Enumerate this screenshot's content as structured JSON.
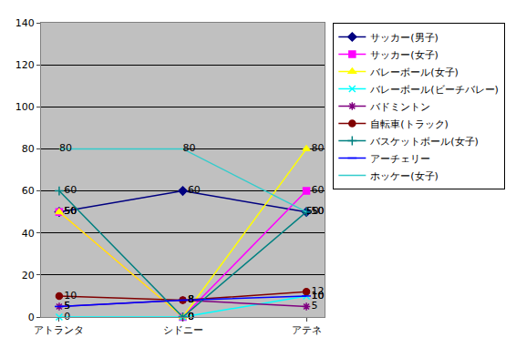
{
  "chart_data": {
    "type": "line",
    "categories": [
      "アトランタ",
      "シドニー",
      "アテネ"
    ],
    "series": [
      {
        "name": "サッカー(男子)",
        "color": "#000080",
        "marker": "diamond",
        "values": [
          50,
          60,
          50
        ]
      },
      {
        "name": "サッカー(女子)",
        "color": "#FF00FF",
        "marker": "square",
        "values": [
          50,
          0,
          60
        ]
      },
      {
        "name": "バレーボール(女子)",
        "color": "#FFFF00",
        "marker": "triangle",
        "values": [
          50,
          0,
          80
        ]
      },
      {
        "name": "バレーボール(ビーチバレー)",
        "color": "#00FFFF",
        "marker": "x",
        "values": [
          0,
          0,
          10
        ]
      },
      {
        "name": "バドミントン",
        "color": "#800080",
        "marker": "star",
        "values": [
          5,
          8,
          5
        ]
      },
      {
        "name": "自転車(トラック)",
        "color": "#800000",
        "marker": "circle",
        "values": [
          10,
          8,
          12
        ]
      },
      {
        "name": "バスケットボール(女子)",
        "color": "#008080",
        "marker": "plus",
        "values": [
          60,
          0,
          50
        ]
      },
      {
        "name": "アーチェリー",
        "color": "#0000FF",
        "marker": "dash",
        "values": [
          5,
          8,
          10
        ]
      },
      {
        "name": "ホッケー(女子)",
        "color": "#33CCCC",
        "marker": "none",
        "values": [
          80,
          80,
          50
        ]
      }
    ],
    "ylim": [
      0,
      140
    ],
    "yticks": [
      0,
      20,
      40,
      60,
      80,
      100,
      120,
      140
    ],
    "grid": true,
    "legend": "right",
    "data_labels": true
  }
}
